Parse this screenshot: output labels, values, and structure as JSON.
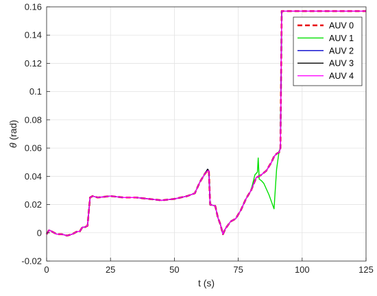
{
  "chart_data": {
    "type": "line",
    "xlabel": "t (s)",
    "ylabel_symbol": "θ",
    "ylabel_unit": " (rad)",
    "xlim": [
      0,
      125
    ],
    "ylim": [
      -0.02,
      0.16
    ],
    "xticks": [
      0,
      25,
      50,
      75,
      100,
      125
    ],
    "xtick_labels": [
      "0",
      "25",
      "50",
      "75",
      "100",
      "125"
    ],
    "yticks": [
      -0.02,
      0,
      0.02,
      0.04,
      0.06,
      0.08,
      0.1,
      0.12,
      0.14,
      0.16
    ],
    "ytick_labels": [
      "-0.02",
      "0",
      "0.02",
      "0.04",
      "0.06",
      "0.08",
      "0.1",
      "0.12",
      "0.14",
      "0.16"
    ],
    "grid": true,
    "legend_position": "top-right",
    "series": [
      {
        "name": "AUV 0",
        "color": "#e8000b",
        "style": "dashed",
        "x": [
          0,
          1,
          2,
          4,
          6,
          8,
          10,
          12,
          13,
          14,
          15,
          16,
          16.5,
          17,
          18,
          20,
          25,
          30,
          35,
          40,
          45,
          50,
          55,
          58,
          60,
          62,
          63,
          63.5,
          64,
          66,
          67,
          68,
          69,
          70,
          72,
          74,
          76,
          78,
          80,
          82,
          84,
          86,
          88,
          89,
          90,
          91,
          91.5,
          92,
          92.5,
          95,
          100,
          110,
          120,
          125
        ],
        "y": [
          -0.001,
          0.002,
          0.001,
          -0.001,
          -0.001,
          -0.002,
          -0.001,
          0.001,
          0.001,
          0.004,
          0.004,
          0.005,
          0.015,
          0.025,
          0.026,
          0.025,
          0.026,
          0.025,
          0.025,
          0.024,
          0.023,
          0.024,
          0.026,
          0.028,
          0.036,
          0.042,
          0.044,
          0.044,
          0.02,
          0.019,
          0.011,
          0.006,
          -0.001,
          0.003,
          0.008,
          0.01,
          0.016,
          0.024,
          0.03,
          0.039,
          0.041,
          0.044,
          0.05,
          0.054,
          0.056,
          0.057,
          0.06,
          0.157,
          0.157,
          0.157,
          0.157,
          0.157,
          0.157,
          0.157
        ]
      },
      {
        "name": "AUV 1",
        "color": "#00e000",
        "style": "solid",
        "x": [
          0,
          1,
          2,
          4,
          6,
          8,
          10,
          12,
          13,
          14,
          15,
          16,
          16.5,
          17,
          18,
          20,
          25,
          30,
          35,
          40,
          45,
          50,
          55,
          58,
          60,
          62,
          63,
          63.5,
          64,
          66,
          67,
          68,
          69,
          70,
          72,
          74,
          76,
          78,
          80,
          81.5,
          82.5,
          82.8,
          83.2,
          84,
          85,
          86,
          87,
          88,
          89,
          90,
          91,
          91.5,
          92,
          92.5,
          95,
          100,
          110,
          120,
          125
        ],
        "y": [
          -0.001,
          0.002,
          0.001,
          -0.001,
          -0.001,
          -0.002,
          -0.001,
          0.001,
          0.001,
          0.004,
          0.004,
          0.005,
          0.015,
          0.025,
          0.026,
          0.025,
          0.026,
          0.025,
          0.025,
          0.024,
          0.023,
          0.024,
          0.026,
          0.028,
          0.036,
          0.042,
          0.044,
          0.044,
          0.02,
          0.019,
          0.011,
          0.006,
          -0.001,
          0.003,
          0.008,
          0.01,
          0.016,
          0.024,
          0.03,
          0.041,
          0.043,
          0.053,
          0.038,
          0.037,
          0.035,
          0.031,
          0.027,
          0.022,
          0.017,
          0.045,
          0.058,
          0.06,
          0.157,
          0.157,
          0.157,
          0.157,
          0.157,
          0.157,
          0.157
        ]
      },
      {
        "name": "AUV 2",
        "color": "#0000cc",
        "style": "solid",
        "x": [
          0,
          1,
          2,
          4,
          6,
          8,
          10,
          12,
          13,
          14,
          15,
          16,
          16.5,
          17,
          18,
          20,
          25,
          30,
          35,
          40,
          45,
          50,
          55,
          58,
          60,
          62,
          63,
          63.5,
          64,
          66,
          67,
          68,
          69,
          70,
          72,
          74,
          76,
          78,
          80,
          82,
          84,
          86,
          88,
          89,
          90,
          91,
          91.5,
          92,
          92.5,
          95,
          100,
          110,
          120,
          125
        ],
        "y": [
          -0.001,
          0.002,
          0.001,
          -0.001,
          -0.001,
          -0.002,
          -0.001,
          0.001,
          0.001,
          0.004,
          0.004,
          0.005,
          0.015,
          0.025,
          0.026,
          0.025,
          0.026,
          0.025,
          0.025,
          0.024,
          0.023,
          0.024,
          0.026,
          0.028,
          0.036,
          0.042,
          0.045,
          0.044,
          0.02,
          0.019,
          0.011,
          0.006,
          -0.001,
          0.003,
          0.008,
          0.01,
          0.016,
          0.024,
          0.03,
          0.039,
          0.041,
          0.044,
          0.05,
          0.054,
          0.056,
          0.057,
          0.06,
          0.157,
          0.157,
          0.157,
          0.157,
          0.157,
          0.157,
          0.157
        ]
      },
      {
        "name": "AUV 3",
        "color": "#000000",
        "style": "solid",
        "x": [
          0,
          1,
          2,
          4,
          6,
          8,
          10,
          12,
          13,
          14,
          15,
          16,
          16.5,
          17,
          18,
          20,
          25,
          30,
          35,
          40,
          45,
          50,
          55,
          58,
          60,
          62,
          63,
          63.5,
          64,
          66,
          67,
          68,
          69,
          70,
          72,
          74,
          76,
          78,
          80,
          82,
          84,
          86,
          88,
          89,
          90,
          91,
          91.5,
          92,
          92.5,
          95,
          100,
          110,
          120,
          125
        ],
        "y": [
          -0.001,
          0.002,
          0.001,
          -0.001,
          -0.001,
          -0.002,
          -0.001,
          0.001,
          0.001,
          0.004,
          0.004,
          0.005,
          0.015,
          0.025,
          0.026,
          0.025,
          0.026,
          0.025,
          0.025,
          0.024,
          0.023,
          0.024,
          0.026,
          0.028,
          0.036,
          0.042,
          0.045,
          0.044,
          0.02,
          0.019,
          0.011,
          0.006,
          -0.001,
          0.003,
          0.008,
          0.01,
          0.016,
          0.024,
          0.03,
          0.039,
          0.041,
          0.044,
          0.05,
          0.054,
          0.056,
          0.057,
          0.06,
          0.157,
          0.157,
          0.157,
          0.157,
          0.157,
          0.157,
          0.157
        ]
      },
      {
        "name": "AUV 4",
        "color": "#ff00ff",
        "style": "solid",
        "x": [
          0,
          1,
          2,
          4,
          6,
          8,
          10,
          12,
          13,
          14,
          15,
          16,
          16.5,
          17,
          18,
          20,
          25,
          30,
          35,
          40,
          45,
          50,
          55,
          58,
          60,
          62,
          63,
          63.5,
          64,
          66,
          67,
          68,
          69,
          70,
          72,
          74,
          76,
          78,
          80,
          82,
          84,
          86,
          88,
          89,
          90,
          91,
          91.5,
          92,
          92.5,
          95,
          100,
          110,
          120,
          125
        ],
        "y": [
          -0.001,
          0.002,
          0.001,
          -0.001,
          -0.001,
          -0.002,
          -0.001,
          0.001,
          0.001,
          0.004,
          0.004,
          0.005,
          0.015,
          0.025,
          0.026,
          0.025,
          0.026,
          0.025,
          0.025,
          0.024,
          0.023,
          0.024,
          0.026,
          0.028,
          0.036,
          0.042,
          0.044,
          0.044,
          0.02,
          0.019,
          0.011,
          0.006,
          -0.001,
          0.003,
          0.008,
          0.01,
          0.016,
          0.024,
          0.03,
          0.039,
          0.041,
          0.044,
          0.05,
          0.054,
          0.056,
          0.057,
          0.06,
          0.157,
          0.157,
          0.157,
          0.157,
          0.157,
          0.157,
          0.157
        ]
      }
    ]
  }
}
